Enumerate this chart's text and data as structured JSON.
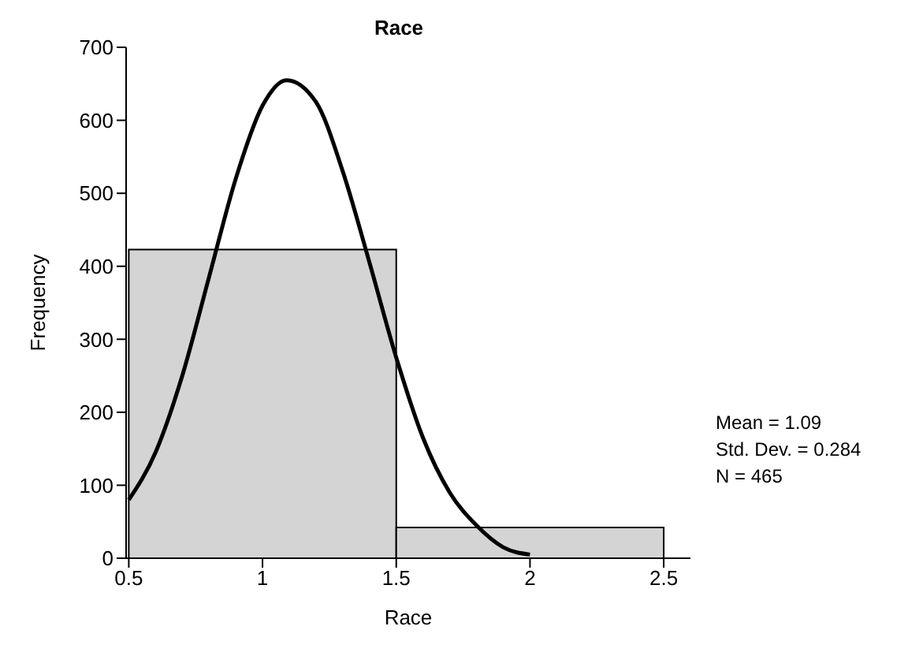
{
  "chart_data": {
    "type": "histogram",
    "title": "Race",
    "xlabel": "Race",
    "ylabel": "Frequency",
    "xlim": [
      0.49,
      2.6
    ],
    "xticks": [
      0.5,
      1,
      1.5,
      2,
      2.5
    ],
    "ylim": [
      0,
      700
    ],
    "yticks": [
      0,
      100,
      200,
      300,
      400,
      500,
      600,
      700
    ],
    "series": [
      {
        "bins": [
          0.5,
          1.5,
          2.5
        ],
        "values": [
          423,
          42
        ],
        "color": "#d4d4d4"
      },
      {
        "type": "line",
        "x": [
          0.5,
          0.6,
          0.7,
          0.8,
          0.9,
          1.0,
          1.09,
          1.2,
          1.3,
          1.4,
          1.5,
          1.6,
          1.7,
          1.8,
          1.9,
          2.0
        ],
        "values": [
          80,
          145,
          250,
          385,
          520,
          620,
          655,
          625,
          530,
          405,
          275,
          165,
          90,
          45,
          15,
          5
        ],
        "color": "#000000"
      }
    ],
    "annotations": [
      "Mean = 1.09",
      "Std. Dev. = 0.284",
      "N = 465"
    ]
  }
}
